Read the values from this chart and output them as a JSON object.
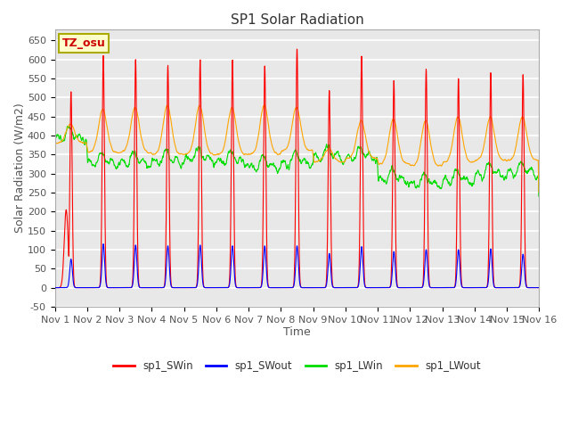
{
  "title": "SP1 Solar Radiation",
  "xlabel": "Time",
  "ylabel": "Solar Radiation (W/m2)",
  "ylim": [
    -50,
    680
  ],
  "xlim_days": [
    0,
    15
  ],
  "annotation_text": "TZ_osu",
  "annotation_color": "#cc0000",
  "annotation_bg": "#ffffcc",
  "annotation_border": "#aaaa00",
  "bg_color": "#e8e8e8",
  "grid_color": "white",
  "colors": {
    "sp1_SWin": "#ff0000",
    "sp1_SWout": "#0000ff",
    "sp1_LWin": "#00dd00",
    "sp1_LWout": "#ffa500"
  },
  "legend_labels": [
    "sp1_SWin",
    "sp1_SWout",
    "sp1_LWin",
    "sp1_LWout"
  ],
  "xtick_labels": [
    "Nov 1",
    "Nov 2",
    "Nov 3",
    "Nov 4",
    "Nov 5",
    "Nov 6",
    "Nov 7",
    "Nov 8",
    "Nov 9",
    "Nov 10",
    "Nov 11",
    "Nov 12",
    "Nov 13",
    "Nov 14",
    "Nov 15",
    "Nov 16"
  ],
  "ytick_values": [
    -50,
    0,
    50,
    100,
    150,
    200,
    250,
    300,
    350,
    400,
    450,
    500,
    550,
    600,
    650
  ],
  "title_fontsize": 11,
  "axis_label_fontsize": 9,
  "tick_fontsize": 8
}
